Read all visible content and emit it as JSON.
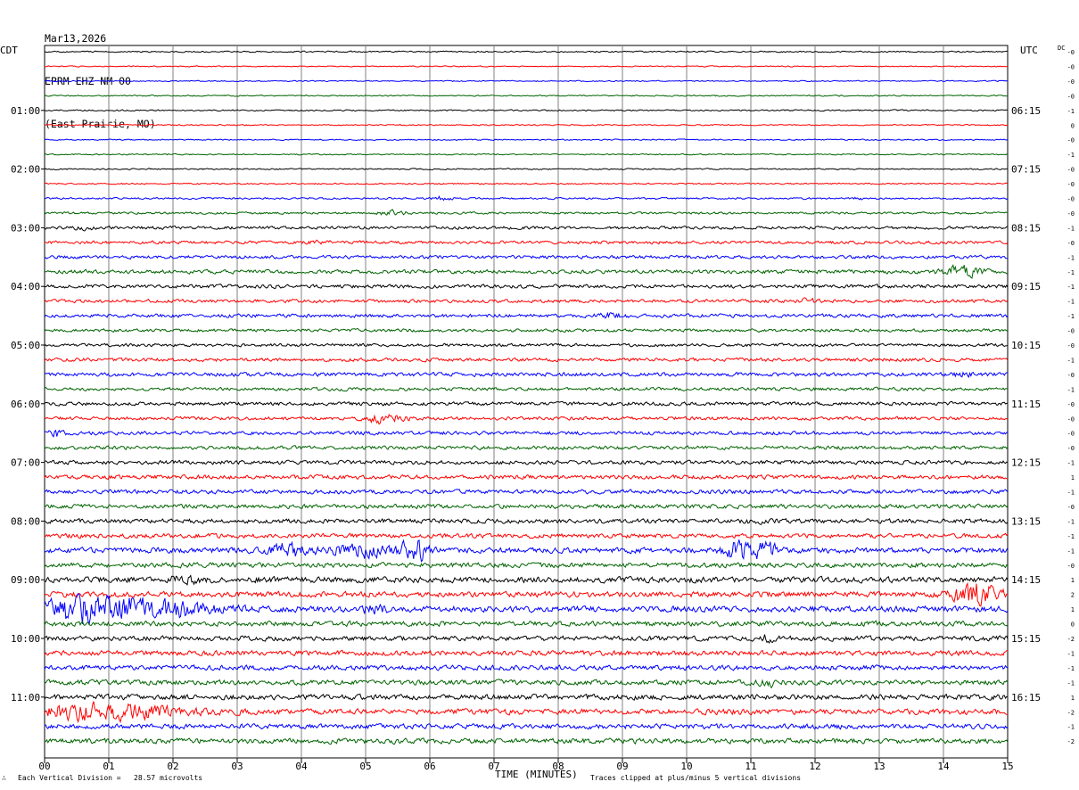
{
  "header": {
    "date": "Mar13,2026",
    "station": "EPRM EHZ NM 00",
    "location": "(East Prairie, MO)"
  },
  "left_timezone": "CDT",
  "right_timezone": "UTC",
  "dc_label": "DC",
  "footer": {
    "scale_note": "Each Vertical Division =   28.57 microvolts",
    "clip_note": "Traces clipped at plus/minus 5 vertical divisions",
    "mark": "∴"
  },
  "colors": {
    "trace_cycle": [
      "#000000",
      "#ff0000",
      "#0000ff",
      "#006400"
    ],
    "grid": "#808080",
    "background": "#ffffff"
  },
  "chart_data": {
    "type": "line",
    "title": "",
    "xlabel": "TIME (MINUTES)",
    "ylabel": "",
    "xlim": [
      0,
      15
    ],
    "x_ticks": [
      "00",
      "01",
      "02",
      "03",
      "04",
      "05",
      "06",
      "07",
      "08",
      "09",
      "10",
      "11",
      "12",
      "13",
      "14",
      "15"
    ],
    "grid": true,
    "left_hour_labels": [
      "01:00",
      "02:00",
      "03:00",
      "04:00",
      "05:00",
      "06:00",
      "07:00",
      "08:00",
      "09:00",
      "10:00",
      "11:00"
    ],
    "right_hour_labels": [
      "06:15",
      "07:15",
      "08:15",
      "09:15",
      "10:15",
      "11:15",
      "12:15",
      "13:15",
      "14:15",
      "15:15",
      "16:15"
    ],
    "dc_offsets": [
      "-0",
      "-0",
      "-0",
      "-0",
      "-1",
      "0",
      "-0",
      "-1",
      "-0",
      "-0",
      "-0",
      "-0",
      "-1",
      "-0",
      "-1",
      "-1",
      "-1",
      "-1",
      "-1",
      "-0",
      "-0",
      "-1",
      "-0",
      "-1",
      "-0",
      "-0",
      "-0",
      "-0",
      "-1",
      "1",
      "-1",
      "-0",
      "-1",
      "-1",
      "-1",
      "-0",
      "1",
      "2",
      "1",
      "0",
      "-2",
      "-1",
      "-1",
      "-1",
      "1",
      "-2",
      "-1",
      "-2"
    ],
    "traces": [
      {
        "row": 0,
        "amp": 1.0,
        "bursts": []
      },
      {
        "row": 1,
        "amp": 0.8,
        "bursts": []
      },
      {
        "row": 2,
        "amp": 0.8,
        "bursts": []
      },
      {
        "row": 3,
        "amp": 0.9,
        "bursts": []
      },
      {
        "row": 4,
        "amp": 1.0,
        "bursts": []
      },
      {
        "row": 5,
        "amp": 0.9,
        "bursts": []
      },
      {
        "row": 6,
        "amp": 0.9,
        "bursts": []
      },
      {
        "row": 7,
        "amp": 0.9,
        "bursts": []
      },
      {
        "row": 8,
        "amp": 1.0,
        "bursts": []
      },
      {
        "row": 9,
        "amp": 1.0,
        "bursts": []
      },
      {
        "row": 10,
        "amp": 1.3,
        "bursts": [
          [
            6.2,
            0.2,
            3
          ],
          [
            12.7,
            0.2,
            2
          ]
        ]
      },
      {
        "row": 11,
        "amp": 1.6,
        "bursts": [
          [
            5.4,
            0.3,
            3
          ]
        ]
      },
      {
        "row": 12,
        "amp": 2.2,
        "bursts": [
          [
            0.6,
            0.2,
            2
          ]
        ]
      },
      {
        "row": 13,
        "amp": 2.2,
        "bursts": [
          [
            4.3,
            0.2,
            2
          ]
        ]
      },
      {
        "row": 14,
        "amp": 2.4,
        "bursts": []
      },
      {
        "row": 15,
        "amp": 2.8,
        "bursts": [
          [
            14.3,
            0.4,
            4
          ]
        ]
      },
      {
        "row": 16,
        "amp": 2.6,
        "bursts": []
      },
      {
        "row": 17,
        "amp": 2.4,
        "bursts": [
          [
            11.9,
            0.2,
            2
          ]
        ]
      },
      {
        "row": 18,
        "amp": 2.6,
        "bursts": [
          [
            8.8,
            0.3,
            2
          ]
        ]
      },
      {
        "row": 19,
        "amp": 2.2,
        "bursts": []
      },
      {
        "row": 20,
        "amp": 2.2,
        "bursts": []
      },
      {
        "row": 21,
        "amp": 2.6,
        "bursts": []
      },
      {
        "row": 22,
        "amp": 2.8,
        "bursts": [
          [
            14.3,
            0.2,
            2
          ]
        ]
      },
      {
        "row": 23,
        "amp": 2.4,
        "bursts": []
      },
      {
        "row": 24,
        "amp": 2.6,
        "bursts": []
      },
      {
        "row": 25,
        "amp": 2.4,
        "bursts": [
          [
            5.3,
            0.4,
            4
          ]
        ]
      },
      {
        "row": 26,
        "amp": 2.6,
        "bursts": [
          [
            0.2,
            0.2,
            3
          ]
        ]
      },
      {
        "row": 27,
        "amp": 2.6,
        "bursts": []
      },
      {
        "row": 28,
        "amp": 2.8,
        "bursts": []
      },
      {
        "row": 29,
        "amp": 3.0,
        "bursts": []
      },
      {
        "row": 30,
        "amp": 3.0,
        "bursts": []
      },
      {
        "row": 31,
        "amp": 3.0,
        "bursts": []
      },
      {
        "row": 32,
        "amp": 3.2,
        "bursts": [
          [
            11.0,
            0.2,
            2
          ]
        ]
      },
      {
        "row": 33,
        "amp": 3.2,
        "bursts": []
      },
      {
        "row": 34,
        "amp": 4.0,
        "bursts": [
          [
            3.8,
            0.4,
            3.5
          ],
          [
            5.0,
            0.8,
            3
          ],
          [
            5.8,
            0.3,
            5
          ],
          [
            10.8,
            0.3,
            4
          ],
          [
            11.2,
            0.3,
            4
          ]
        ]
      },
      {
        "row": 35,
        "amp": 3.6,
        "bursts": []
      },
      {
        "row": 36,
        "amp": 4.2,
        "bursts": [
          [
            2.2,
            0.3,
            2.5
          ]
        ]
      },
      {
        "row": 37,
        "amp": 4.0,
        "bursts": [
          [
            14.5,
            0.5,
            5
          ]
        ]
      },
      {
        "row": 38,
        "amp": 4.4,
        "bursts": [
          [
            0.4,
            0.9,
            4
          ],
          [
            1.5,
            1.5,
            4
          ],
          [
            5.1,
            0.3,
            2
          ]
        ]
      },
      {
        "row": 39,
        "amp": 3.6,
        "bursts": []
      },
      {
        "row": 40,
        "amp": 3.6,
        "bursts": [
          [
            11.2,
            0.2,
            2
          ]
        ]
      },
      {
        "row": 41,
        "amp": 3.6,
        "bursts": []
      },
      {
        "row": 42,
        "amp": 3.6,
        "bursts": []
      },
      {
        "row": 43,
        "amp": 3.6,
        "bursts": [
          [
            11.3,
            0.3,
            2
          ]
        ]
      },
      {
        "row": 44,
        "amp": 3.8,
        "bursts": []
      },
      {
        "row": 45,
        "amp": 4.0,
        "bursts": [
          [
            0.8,
            1.8,
            3.5
          ]
        ]
      },
      {
        "row": 46,
        "amp": 3.6,
        "bursts": []
      },
      {
        "row": 47,
        "amp": 3.8,
        "bursts": []
      }
    ]
  }
}
